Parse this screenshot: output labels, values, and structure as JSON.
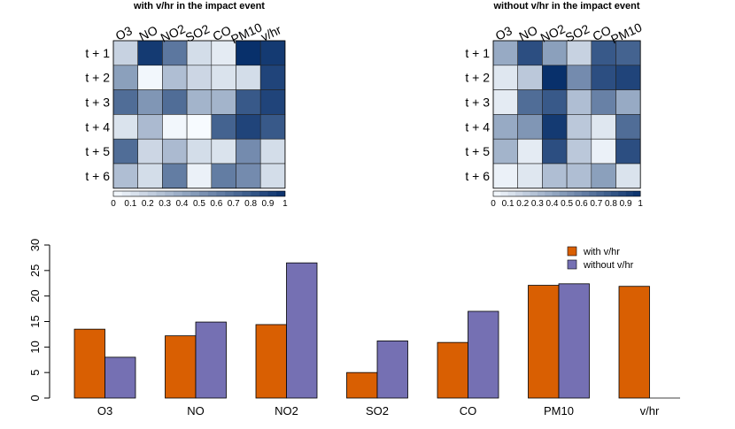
{
  "chart_data": [
    {
      "type": "heatmap",
      "title": "with v/hr in the impact event",
      "columns": [
        "O3",
        "NO",
        "NO2",
        "SO2",
        "CO",
        "PM10",
        "v/hr"
      ],
      "rows": [
        "t + 1",
        "t + 2",
        "t + 3",
        "t + 4",
        "t + 5",
        "t + 6"
      ],
      "values": [
        [
          0.2,
          0.95,
          0.65,
          0.15,
          0.08,
          1.0,
          0.95
        ],
        [
          0.45,
          0.02,
          0.3,
          0.18,
          0.12,
          0.15,
          0.9
        ],
        [
          0.7,
          0.5,
          0.7,
          0.35,
          0.35,
          0.8,
          0.9
        ],
        [
          0.12,
          0.32,
          0.02,
          0.0,
          0.75,
          0.9,
          0.8
        ],
        [
          0.7,
          0.18,
          0.32,
          0.15,
          0.12,
          0.55,
          0.15
        ],
        [
          0.3,
          0.15,
          0.62,
          0.05,
          0.62,
          0.55,
          0.15
        ]
      ],
      "colorbar_ticks": [
        "0",
        "0.1",
        "0.2",
        "0.3",
        "0.4",
        "0.5",
        "0.6",
        "0.7",
        "0.8",
        "0.9",
        "1"
      ],
      "range": [
        0,
        1
      ],
      "color_low": "#f7fbff",
      "color_high": "#08306b"
    },
    {
      "type": "heatmap",
      "title": "without v/hr in the impact event",
      "columns": [
        "O3",
        "NO",
        "NO2",
        "SO2",
        "CO",
        "PM10"
      ],
      "rows": [
        "t + 1",
        "t + 2",
        "t + 3",
        "t + 4",
        "t + 5",
        "t + 6"
      ],
      "values": [
        [
          0.4,
          0.85,
          0.45,
          0.2,
          0.8,
          0.75
        ],
        [
          0.1,
          0.25,
          1.0,
          0.55,
          0.85,
          0.9
        ],
        [
          0.08,
          0.7,
          0.8,
          0.3,
          0.6,
          0.4
        ],
        [
          0.4,
          0.5,
          0.95,
          0.25,
          0.1,
          0.7
        ],
        [
          0.35,
          0.08,
          0.85,
          0.25,
          0.05,
          0.85
        ],
        [
          0.05,
          0.1,
          0.3,
          0.3,
          0.45,
          0.12
        ]
      ],
      "colorbar_ticks": [
        "0",
        "0.1",
        "0.2",
        "0.3",
        "0.4",
        "0.5",
        "0.6",
        "0.7",
        "0.8",
        "0.9",
        "1"
      ],
      "range": [
        0,
        1
      ],
      "color_low": "#f7fbff",
      "color_high": "#08306b"
    },
    {
      "type": "bar",
      "categories": [
        "O3",
        "NO",
        "NO2",
        "SO2",
        "CO",
        "PM10",
        "v/hr"
      ],
      "series": [
        {
          "name": "with v/hr",
          "color": "#d95f02",
          "values": [
            13.5,
            12.2,
            14.4,
            5.0,
            10.9,
            22.1,
            21.9
          ]
        },
        {
          "name": "without v/hr",
          "color": "#7570b3",
          "values": [
            8.0,
            14.9,
            26.5,
            11.2,
            17.0,
            22.4,
            0
          ]
        }
      ],
      "ylim": [
        0,
        30
      ],
      "yticks": [
        "0",
        "5",
        "10",
        "15",
        "20",
        "25",
        "30"
      ],
      "legend_position": "top-right"
    }
  ]
}
